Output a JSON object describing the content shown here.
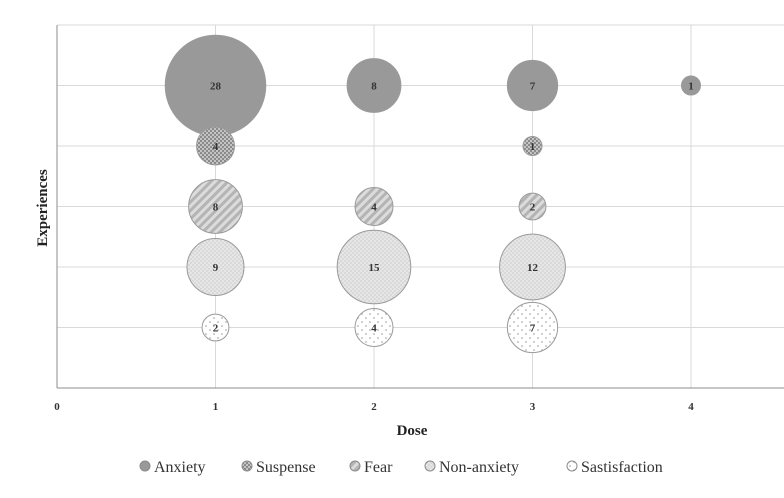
{
  "chart_data": {
    "type": "bubble",
    "title": "",
    "xlabel": "Dose",
    "ylabel": "Experiences",
    "xlim": [
      0,
      4.5
    ],
    "x_ticks": [
      0,
      1,
      2,
      3,
      4
    ],
    "grid": true,
    "legend_position": "bottom",
    "series": [
      {
        "name": "Anxiety",
        "color": "#999999",
        "pattern": "solid",
        "y_level": 5,
        "points": [
          {
            "x": 1,
            "value": 28
          },
          {
            "x": 2,
            "value": 8
          },
          {
            "x": 3,
            "value": 7
          },
          {
            "x": 4,
            "value": 1
          }
        ]
      },
      {
        "name": "Suspense",
        "color": "#b5b5b5",
        "pattern": "checker",
        "y_level": 4,
        "points": [
          {
            "x": 1,
            "value": 4
          },
          {
            "x": 3,
            "value": 1
          }
        ]
      },
      {
        "name": "Fear",
        "color": "#c8c8c8",
        "pattern": "diagonal",
        "y_level": 3,
        "points": [
          {
            "x": 1,
            "value": 8
          },
          {
            "x": 2,
            "value": 4
          },
          {
            "x": 3,
            "value": 2
          }
        ]
      },
      {
        "name": "Non-anxiety",
        "color": "#dedede",
        "pattern": "fine-dots",
        "y_level": 2,
        "points": [
          {
            "x": 1,
            "value": 9
          },
          {
            "x": 2,
            "value": 15
          },
          {
            "x": 3,
            "value": 12
          }
        ]
      },
      {
        "name": "Sastisfaction",
        "color": "#ffffff",
        "pattern": "sparse-dots",
        "y_level": 1,
        "points": [
          {
            "x": 1,
            "value": 2
          },
          {
            "x": 2,
            "value": 4
          },
          {
            "x": 3,
            "value": 7
          }
        ]
      }
    ]
  }
}
